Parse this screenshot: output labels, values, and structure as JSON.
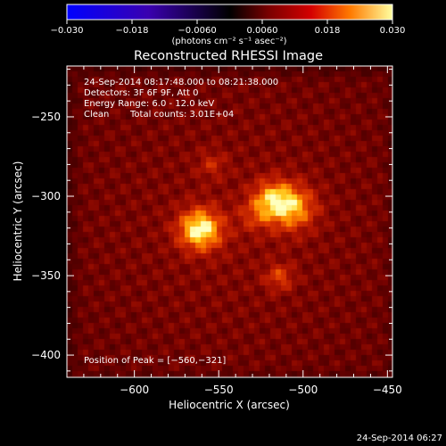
{
  "colorbar": {
    "tick_labels": [
      "−0.030",
      "−0.018",
      "−0.0060",
      "0.0060",
      "0.018",
      "0.030"
    ],
    "tick_values": [
      -0.03,
      -0.018,
      -0.006,
      0.006,
      0.018,
      0.03
    ],
    "range": [
      -0.03,
      0.03
    ],
    "units": "(photons cm⁻² s⁻¹ asec⁻²)"
  },
  "chart_data": {
    "type": "heatmap",
    "title": "Reconstructed RHESSI Image",
    "xlabel": "Heliocentric X (arcsec)",
    "ylabel": "Heliocentric Y (arcsec)",
    "xlim": [
      -640,
      -447
    ],
    "ylim": [
      -414,
      -218
    ],
    "x_ticks": [
      -600,
      -550,
      -500,
      -450
    ],
    "y_ticks": [
      -250,
      -300,
      -350,
      -400
    ],
    "x_tick_labels": [
      "−600",
      "−550",
      "−500",
      "−450"
    ],
    "y_tick_labels": [
      "−250",
      "−300",
      "−350",
      "−400"
    ],
    "sources": [
      {
        "x": -561,
        "y": -321,
        "intensity": 1.0,
        "sigma": 9
      },
      {
        "x": -507,
        "y": -307,
        "intensity": 0.78,
        "sigma": 10
      },
      {
        "x": -519,
        "y": -301,
        "intensity": 0.55,
        "sigma": 8
      },
      {
        "x": -514,
        "y": -351,
        "intensity": 0.42,
        "sigma": 6
      },
      {
        "x": -554,
        "y": -280,
        "intensity": 0.28,
        "sigma": 6
      },
      {
        "x": -528,
        "y": -312,
        "intensity": 0.3,
        "sigma": 7
      }
    ],
    "annotations": {
      "time": "24-Sep-2014 08:17:48.000 to 08:21:38.000",
      "detectors": "Detectors: 3F 6F 9F, Att 0",
      "energy": "Energy Range: 6.0 - 12.0 keV",
      "clean_label": "Clean",
      "total_counts": "Total counts: 3.01E+04",
      "peak": "Position of Peak = [−560,−321]"
    }
  },
  "footer_timestamp": "24-Sep-2014 06:27"
}
